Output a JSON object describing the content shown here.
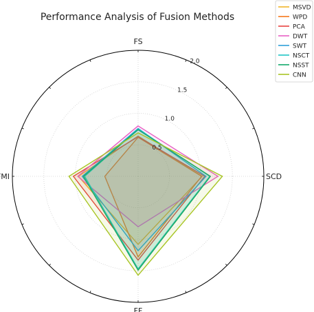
{
  "chart_data": {
    "type": "radar",
    "title": "Performance Analysis of Fusion Methods",
    "axes": [
      "FS",
      "SCD",
      "FF",
      "FMI"
    ],
    "rlim": [
      0,
      2.0
    ],
    "rticks": [
      0.5,
      1.0,
      1.5,
      2.0
    ],
    "rtick_labels": [
      "0.5",
      "1.0",
      "1.5",
      "2.0"
    ],
    "grid": true,
    "legend_position": "top-right",
    "series": [
      {
        "name": "MSVD",
        "color": "#f0b429",
        "values": [
          0.64,
          1.02,
          1.08,
          0.95
        ]
      },
      {
        "name": "WPD",
        "color": "#f5761a",
        "values": [
          0.62,
          1.01,
          1.28,
          0.53
        ]
      },
      {
        "name": "PCA",
        "color": "#e8423f",
        "values": [
          0.63,
          1.06,
          1.33,
          1.03
        ]
      },
      {
        "name": "DWT",
        "color": "#e75fc4",
        "values": [
          0.8,
          1.27,
          0.8,
          0.96
        ]
      },
      {
        "name": "SWT",
        "color": "#2f9fd8",
        "values": [
          0.76,
          1.08,
          1.18,
          0.89
        ]
      },
      {
        "name": "NSCT",
        "color": "#1fc4c4",
        "values": [
          0.75,
          1.14,
          1.47,
          0.85
        ]
      },
      {
        "name": "NSST",
        "color": "#12a86b",
        "values": [
          0.74,
          1.15,
          1.49,
          0.87
        ]
      },
      {
        "name": "CNN",
        "color": "#a8c524",
        "values": [
          0.69,
          1.34,
          1.57,
          1.1
        ]
      }
    ]
  }
}
